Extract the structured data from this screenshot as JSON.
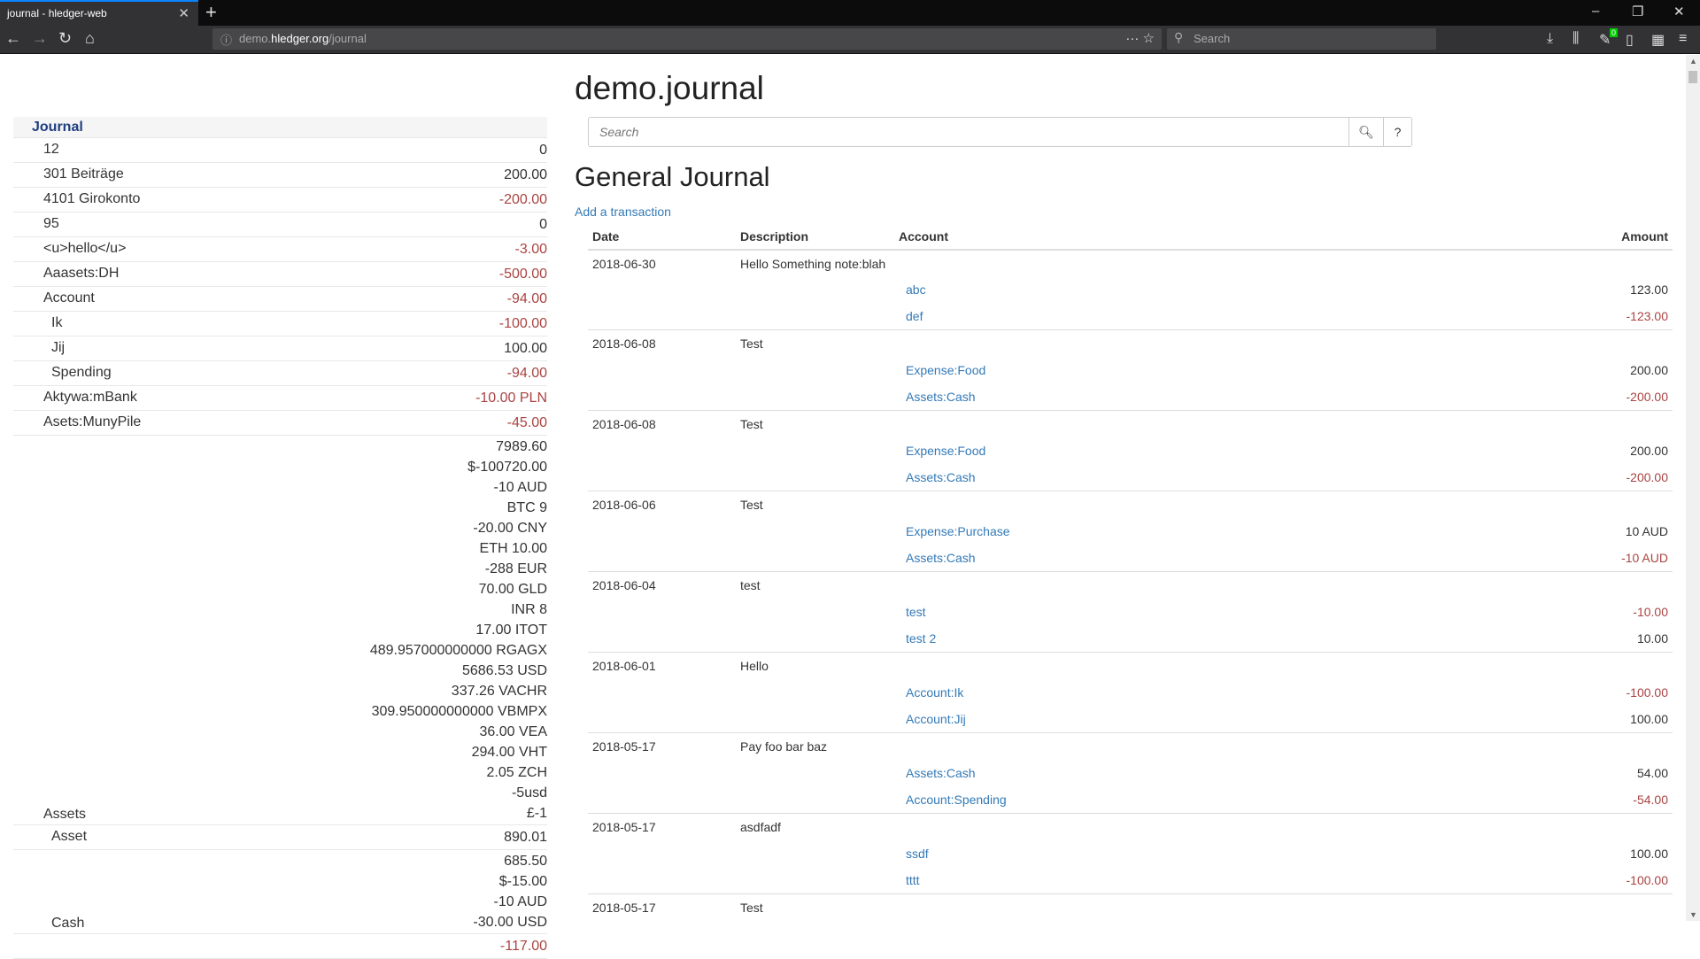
{
  "browser": {
    "tab_title": "journal - hledger-web",
    "url_host_pre": "demo.",
    "url_host": "hledger.org",
    "url_path": "/journal",
    "search_placeholder": "Search",
    "badge": "0"
  },
  "colors": {
    "negative": "#a94442",
    "link": "#337ab7",
    "accent": "#0a84ff"
  },
  "sidebar": {
    "heading": "Journal",
    "rows": [
      {
        "name": "12",
        "indent": 0,
        "amounts": [
          "0"
        ]
      },
      {
        "name": "301 Beiträge",
        "indent": 0,
        "amounts": [
          "200.00"
        ]
      },
      {
        "name": "4101 Girokonto",
        "indent": 0,
        "amounts": [
          "-200.00"
        ]
      },
      {
        "name": "95",
        "indent": 0,
        "amounts": [
          "0"
        ]
      },
      {
        "name": "<u>hello</u>",
        "indent": 0,
        "amounts": [
          "-3.00"
        ]
      },
      {
        "name": "Aaasets:DH",
        "indent": 0,
        "amounts": [
          "-500.00"
        ]
      },
      {
        "name": "Account",
        "indent": 0,
        "amounts": [
          "-94.00"
        ]
      },
      {
        "name": "Ik",
        "indent": 1,
        "amounts": [
          "-100.00"
        ]
      },
      {
        "name": "Jij",
        "indent": 1,
        "amounts": [
          "100.00"
        ]
      },
      {
        "name": "Spending",
        "indent": 1,
        "amounts": [
          "-94.00"
        ]
      },
      {
        "name": "Aktywa:mBank",
        "indent": 0,
        "amounts": [
          "-10.00 PLN"
        ]
      },
      {
        "name": "Asets:MunyPile",
        "indent": 0,
        "amounts": [
          "-45.00"
        ]
      },
      {
        "name": "Assets",
        "indent": 0,
        "amounts": [
          "7989.60",
          "$-100720.00",
          "-10 AUD",
          "BTC 9",
          "-20.00 CNY",
          "ETH 10.00",
          "-288 EUR",
          "70.00 GLD",
          "INR 8",
          "17.00 ITOT",
          "489.957000000000 RGAGX",
          "5686.53 USD",
          "337.26 VACHR",
          "309.950000000000 VBMPX",
          "36.00 VEA",
          "294.00 VHT",
          "2.05 ZCH",
          "-5usd",
          "£-1"
        ]
      },
      {
        "name": "Asset",
        "indent": 1,
        "amounts": [
          "890.01"
        ]
      },
      {
        "name": "Cash",
        "indent": 1,
        "amounts": [
          "685.50",
          "$-15.00",
          "-10 AUD",
          "-30.00 USD"
        ]
      },
      {
        "name": "",
        "indent": 1,
        "amounts": [
          "-117.00"
        ]
      }
    ]
  },
  "main": {
    "title": "demo.journal",
    "search_placeholder": "Search",
    "help_label": "?",
    "heading": "General Journal",
    "add_link": "Add a transaction",
    "columns": {
      "date": "Date",
      "description": "Description",
      "account": "Account",
      "amount": "Amount"
    },
    "transactions": [
      {
        "date": "2018-06-30",
        "description": "Hello Something note:blah",
        "postings": [
          {
            "account": "abc",
            "amount": "123.00"
          },
          {
            "account": "def",
            "amount": "-123.00"
          }
        ]
      },
      {
        "date": "2018-06-08",
        "description": "Test",
        "postings": [
          {
            "account": "Expense:Food",
            "amount": "200.00"
          },
          {
            "account": "Assets:Cash",
            "amount": "-200.00"
          }
        ]
      },
      {
        "date": "2018-06-08",
        "description": "Test",
        "postings": [
          {
            "account": "Expense:Food",
            "amount": "200.00"
          },
          {
            "account": "Assets:Cash",
            "amount": "-200.00"
          }
        ]
      },
      {
        "date": "2018-06-06",
        "description": "Test",
        "postings": [
          {
            "account": "Expense:Purchase",
            "amount": "10 AUD"
          },
          {
            "account": "Assets:Cash",
            "amount": "-10 AUD"
          }
        ]
      },
      {
        "date": "2018-06-04",
        "description": "test",
        "postings": [
          {
            "account": "test",
            "amount": "-10.00"
          },
          {
            "account": "test 2",
            "amount": "10.00"
          }
        ]
      },
      {
        "date": "2018-06-01",
        "description": "Hello",
        "postings": [
          {
            "account": "Account:Ik",
            "amount": "-100.00"
          },
          {
            "account": "Account:Jij",
            "amount": "100.00"
          }
        ]
      },
      {
        "date": "2018-05-17",
        "description": "Pay foo bar baz",
        "postings": [
          {
            "account": "Assets:Cash",
            "amount": "54.00"
          },
          {
            "account": "Account:Spending",
            "amount": "-54.00"
          }
        ]
      },
      {
        "date": "2018-05-17",
        "description": "asdfadf",
        "postings": [
          {
            "account": "ssdf",
            "amount": "100.00"
          },
          {
            "account": "tttt",
            "amount": "-100.00"
          }
        ]
      },
      {
        "date": "2018-05-17",
        "description": "Test",
        "postings": []
      }
    ]
  }
}
